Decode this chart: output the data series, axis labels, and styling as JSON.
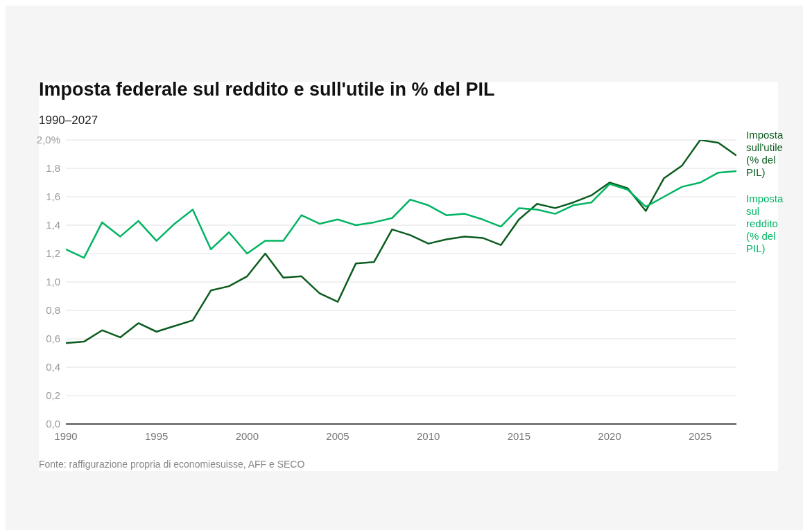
{
  "chart_data": {
    "type": "line",
    "title": "Imposta federale sul reddito e sull'utile in % del PIL",
    "subtitle": "1990–2027",
    "x": [
      1990,
      1991,
      1992,
      1993,
      1994,
      1995,
      1996,
      1997,
      1998,
      1999,
      2000,
      2001,
      2002,
      2003,
      2004,
      2005,
      2006,
      2007,
      2008,
      2009,
      2010,
      2011,
      2012,
      2013,
      2014,
      2015,
      2016,
      2017,
      2018,
      2019,
      2020,
      2021,
      2022,
      2023,
      2024,
      2025,
      2026,
      2027
    ],
    "series": [
      {
        "name": "Imposta sull'utile (% del PIL)",
        "color": "#0b5c1e",
        "values": [
          0.57,
          0.58,
          0.66,
          0.61,
          0.71,
          0.65,
          0.69,
          0.73,
          0.94,
          0.97,
          1.04,
          1.2,
          1.03,
          1.04,
          0.92,
          0.86,
          1.13,
          1.14,
          1.37,
          1.33,
          1.27,
          1.3,
          1.32,
          1.31,
          1.26,
          1.44,
          1.55,
          1.52,
          1.56,
          1.61,
          1.7,
          1.66,
          1.5,
          1.73,
          1.82,
          2.0,
          1.98,
          1.89
        ]
      },
      {
        "name": "Imposta sul reddito (% del PIL)",
        "color": "#00b462",
        "values": [
          1.23,
          1.17,
          1.42,
          1.32,
          1.43,
          1.29,
          1.41,
          1.51,
          1.23,
          1.35,
          1.2,
          1.29,
          1.29,
          1.47,
          1.41,
          1.44,
          1.4,
          1.42,
          1.45,
          1.58,
          1.54,
          1.47,
          1.48,
          1.44,
          1.39,
          1.52,
          1.51,
          1.48,
          1.54,
          1.56,
          1.69,
          1.65,
          1.53,
          1.6,
          1.67,
          1.7,
          1.77,
          1.78
        ]
      }
    ],
    "xlim": [
      1990,
      2027
    ],
    "xticks": [
      1990,
      1995,
      2000,
      2005,
      2010,
      2015,
      2020,
      2025
    ],
    "ylim": [
      0,
      2
    ],
    "yticks": [
      {
        "value": 0,
        "label": "0,0"
      },
      {
        "value": 0.2,
        "label": "0,2"
      },
      {
        "value": 0.4,
        "label": "0,4"
      },
      {
        "value": 0.6,
        "label": "0,6"
      },
      {
        "value": 0.8,
        "label": "0,8"
      },
      {
        "value": 1,
        "label": "1,0"
      },
      {
        "value": 1.2,
        "label": "1,2"
      },
      {
        "value": 1.4,
        "label": "1,4"
      },
      {
        "value": 1.6,
        "label": "1,6"
      },
      {
        "value": 1.8,
        "label": "1,8"
      },
      {
        "value": 2,
        "label": "2,0%"
      }
    ],
    "grid": "y",
    "legend": false,
    "marker": "none",
    "line_style": "solid",
    "annotations": [
      "Fonte: raffigurazione propria di economiesuisse, AFF e SECO"
    ]
  }
}
